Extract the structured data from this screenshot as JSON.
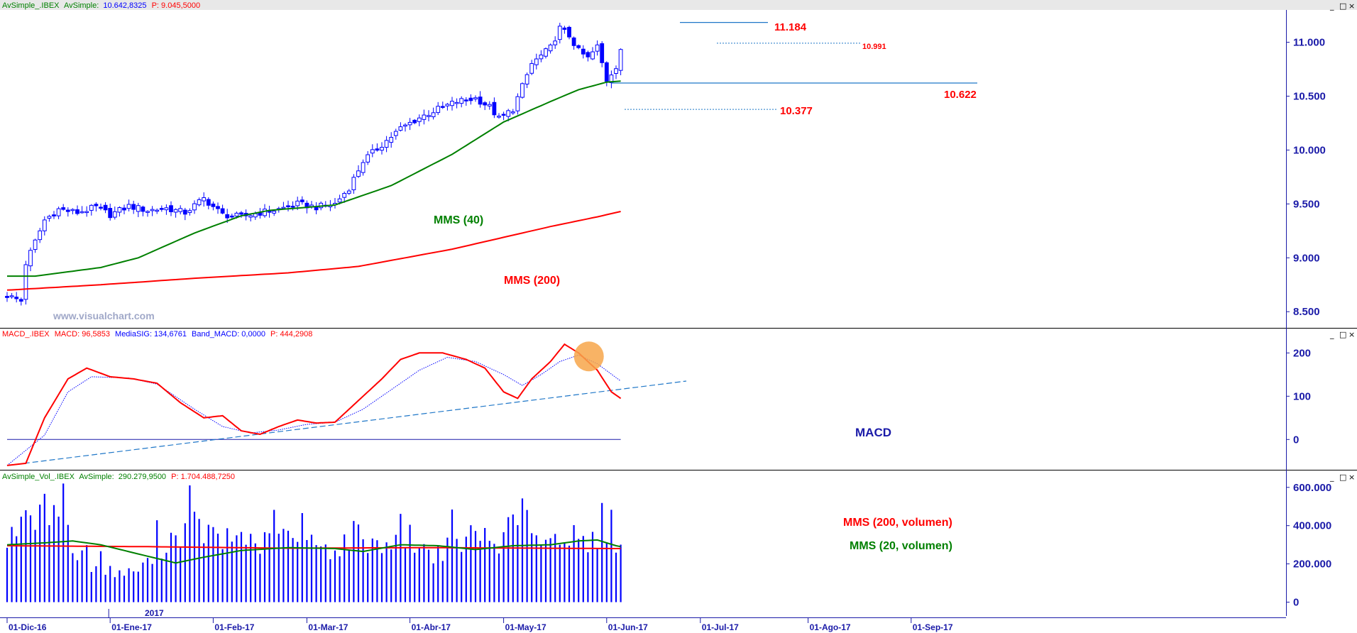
{
  "colors": {
    "price": "#0000ff",
    "mms40": "#008000",
    "mms200": "#ff0000",
    "macd": "#ff0000",
    "signal": "#0000ff",
    "trend": "#1f77c8",
    "volume": "#0000ff",
    "axis": "#1a1aa8"
  },
  "window_buttons": [
    "_",
    "□",
    "×"
  ],
  "panels": {
    "price": {
      "header": {
        "name": "AvSimple_.IBEX",
        "indicator": "AvSimple:",
        "value": "10.642,8325",
        "p": "P: 9.045,5000"
      },
      "watermark": "www.visualchart.com"
    },
    "macd": {
      "header": {
        "name": "MACD_.IBEX",
        "macd": "MACD: 96,5853",
        "sig": "MediaSIG: 134,6761",
        "band": "Band_MACD: 0,0000",
        "p": "P: 444,2908"
      }
    },
    "volume": {
      "header": {
        "name": "AvSimple_Vol_.IBEX",
        "indicator": "AvSimple:",
        "value": "290.279,9500",
        "p": "P: 1.704.488,7250"
      },
      "year_label": "2017"
    }
  },
  "chart_data": [
    {
      "type": "candlestick",
      "title": "AvSimple_.IBEX",
      "ylim": [
        8350,
        11300
      ],
      "y_ticks": [
        "8.500",
        "9.000",
        "9.500",
        "10.000",
        "10.500",
        "11.000"
      ],
      "x_ticks": [
        "01-Dic-16",
        "01-Ene-17",
        "01-Feb-17",
        "01-Mar-17",
        "01-Abr-17",
        "01-May-17",
        "01-Jun-17",
        "01-Jul-17",
        "01-Ago-17",
        "01-Sep-17"
      ],
      "series": [
        {
          "name": "MMS (40)",
          "anchors": [
            [
              0,
              8830
            ],
            [
              6,
              8830
            ],
            [
              20,
              8910
            ],
            [
              28,
              9000
            ],
            [
              40,
              9230
            ],
            [
              50,
              9390
            ],
            [
              56,
              9440
            ],
            [
              70,
              9490
            ],
            [
              82,
              9670
            ],
            [
              95,
              9960
            ],
            [
              106,
              10260
            ],
            [
              116,
              10450
            ],
            [
              122,
              10560
            ],
            [
              128,
              10630
            ],
            [
              131,
              10640
            ]
          ]
        },
        {
          "name": "MMS (200)",
          "anchors": [
            [
              0,
              8700
            ],
            [
              20,
              8750
            ],
            [
              40,
              8810
            ],
            [
              60,
              8860
            ],
            [
              75,
              8920
            ],
            [
              85,
              9000
            ],
            [
              95,
              9080
            ],
            [
              106,
              9190
            ],
            [
              116,
              9290
            ],
            [
              126,
              9380
            ],
            [
              131,
              9430
            ]
          ]
        }
      ],
      "close_anchors": [
        [
          0,
          8650
        ],
        [
          3,
          8600
        ],
        [
          4,
          8950
        ],
        [
          8,
          9350
        ],
        [
          11,
          9450
        ],
        [
          15,
          9420
        ],
        [
          19,
          9470
        ],
        [
          22,
          9400
        ],
        [
          26,
          9480
        ],
        [
          30,
          9440
        ],
        [
          34,
          9460
        ],
        [
          38,
          9420
        ],
        [
          42,
          9550
        ],
        [
          46,
          9400
        ],
        [
          50,
          9380
        ],
        [
          54,
          9420
        ],
        [
          58,
          9450
        ],
        [
          62,
          9500
        ],
        [
          66,
          9470
        ],
        [
          70,
          9500
        ],
        [
          73,
          9650
        ],
        [
          76,
          9900
        ],
        [
          80,
          10050
        ],
        [
          84,
          10200
        ],
        [
          88,
          10300
        ],
        [
          92,
          10380
        ],
        [
          96,
          10450
        ],
        [
          100,
          10480
        ],
        [
          103,
          10400
        ],
        [
          105,
          10290
        ],
        [
          108,
          10380
        ],
        [
          112,
          10800
        ],
        [
          116,
          10950
        ],
        [
          118,
          11130
        ],
        [
          120,
          11060
        ],
        [
          122,
          10920
        ],
        [
          124,
          10850
        ],
        [
          126,
          10960
        ],
        [
          128,
          10650
        ],
        [
          130,
          10780
        ],
        [
          131,
          10940
        ]
      ],
      "annotations": [
        {
          "text": "11.184",
          "value": 11184
        },
        {
          "text": "10.991",
          "value": 10991
        },
        {
          "text": "10.622",
          "value": 10622
        },
        {
          "text": "10.377",
          "value": 10377
        },
        {
          "text": "MMS (40)"
        },
        {
          "text": "MMS (200)"
        }
      ]
    },
    {
      "type": "line",
      "title": "MACD_.IBEX",
      "ylim": [
        -70,
        235
      ],
      "y_ticks": [
        "0",
        "100",
        "200"
      ],
      "series": [
        {
          "name": "MACD",
          "anchors": [
            [
              0,
              -60
            ],
            [
              4,
              -55
            ],
            [
              8,
              50
            ],
            [
              13,
              140
            ],
            [
              17,
              165
            ],
            [
              22,
              145
            ],
            [
              27,
              140
            ],
            [
              32,
              130
            ],
            [
              37,
              85
            ],
            [
              42,
              50
            ],
            [
              46,
              55
            ],
            [
              50,
              20
            ],
            [
              54,
              12
            ],
            [
              58,
              30
            ],
            [
              62,
              45
            ],
            [
              66,
              38
            ],
            [
              70,
              40
            ],
            [
              76,
              100
            ],
            [
              80,
              140
            ],
            [
              84,
              185
            ],
            [
              88,
              200
            ],
            [
              93,
              200
            ],
            [
              98,
              185
            ],
            [
              102,
              165
            ],
            [
              106,
              110
            ],
            [
              109,
              95
            ],
            [
              112,
              140
            ],
            [
              116,
              180
            ],
            [
              119,
              220
            ],
            [
              122,
              200
            ],
            [
              126,
              160
            ],
            [
              129,
              110
            ],
            [
              131,
              95
            ]
          ]
        },
        {
          "name": "MediaSIG",
          "anchors": [
            [
              0,
              -60
            ],
            [
              8,
              10
            ],
            [
              13,
              110
            ],
            [
              18,
              145
            ],
            [
              26,
              142
            ],
            [
              32,
              128
            ],
            [
              40,
              70
            ],
            [
              46,
              30
            ],
            [
              52,
              15
            ],
            [
              58,
              22
            ],
            [
              64,
              35
            ],
            [
              70,
              40
            ],
            [
              76,
              70
            ],
            [
              82,
              115
            ],
            [
              88,
              160
            ],
            [
              94,
              190
            ],
            [
              100,
              180
            ],
            [
              106,
              150
            ],
            [
              110,
              125
            ],
            [
              114,
              150
            ],
            [
              118,
              180
            ],
            [
              122,
              195
            ],
            [
              126,
              175
            ],
            [
              131,
              135
            ]
          ]
        },
        {
          "name": "Trend",
          "anchors": [
            [
              0,
              -60
            ],
            [
              145,
              135
            ]
          ]
        },
        {
          "name": "Band_MACD",
          "anchors": [
            [
              0,
              0
            ],
            [
              131,
              0
            ]
          ]
        }
      ],
      "annotations": [
        {
          "text": "MACD"
        }
      ]
    },
    {
      "type": "bar",
      "title": "AvSimple_Vol_.IBEX",
      "ylim": [
        -50000,
        640000
      ],
      "y_ticks": [
        "0",
        "200.000",
        "400.000",
        "600.000"
      ],
      "volume_anchors": [
        [
          0,
          355000
        ],
        [
          5,
          410000
        ],
        [
          8,
          470000
        ],
        [
          12,
          580000
        ],
        [
          14,
          260000
        ],
        [
          18,
          200000
        ],
        [
          22,
          160000
        ],
        [
          26,
          150000
        ],
        [
          30,
          200000
        ],
        [
          34,
          320000
        ],
        [
          40,
          400000
        ],
        [
          46,
          310000
        ],
        [
          50,
          350000
        ],
        [
          54,
          300000
        ],
        [
          60,
          330000
        ],
        [
          66,
          300000
        ],
        [
          70,
          250000
        ],
        [
          74,
          360000
        ],
        [
          80,
          290000
        ],
        [
          84,
          380000
        ],
        [
          90,
          250000
        ],
        [
          96,
          300000
        ],
        [
          100,
          350000
        ],
        [
          106,
          320000
        ],
        [
          110,
          500000
        ],
        [
          114,
          260000
        ],
        [
          118,
          330000
        ],
        [
          122,
          300000
        ],
        [
          126,
          340000
        ],
        [
          129,
          410000
        ],
        [
          131,
          250000
        ]
      ],
      "series": [
        {
          "name": "MMS (200, volumen)",
          "anchors": [
            [
              0,
              295000
            ],
            [
              30,
              290000
            ],
            [
              60,
              282000
            ],
            [
              90,
              285000
            ],
            [
              131,
              280000
            ]
          ]
        },
        {
          "name": "MMS (20, volumen)",
          "anchors": [
            [
              0,
              300000
            ],
            [
              8,
              310000
            ],
            [
              14,
              320000
            ],
            [
              20,
              300000
            ],
            [
              30,
              240000
            ],
            [
              36,
              205000
            ],
            [
              42,
              235000
            ],
            [
              50,
              270000
            ],
            [
              60,
              285000
            ],
            [
              70,
              280000
            ],
            [
              76,
              265000
            ],
            [
              84,
              300000
            ],
            [
              92,
              295000
            ],
            [
              100,
              275000
            ],
            [
              108,
              295000
            ],
            [
              116,
              300000
            ],
            [
              122,
              320000
            ],
            [
              126,
              325000
            ],
            [
              130,
              295000
            ],
            [
              131,
              290000
            ]
          ]
        }
      ],
      "annotations": [
        {
          "text": "MMS (200, volumen)"
        },
        {
          "text": "MMS (20, volumen)"
        }
      ]
    }
  ]
}
